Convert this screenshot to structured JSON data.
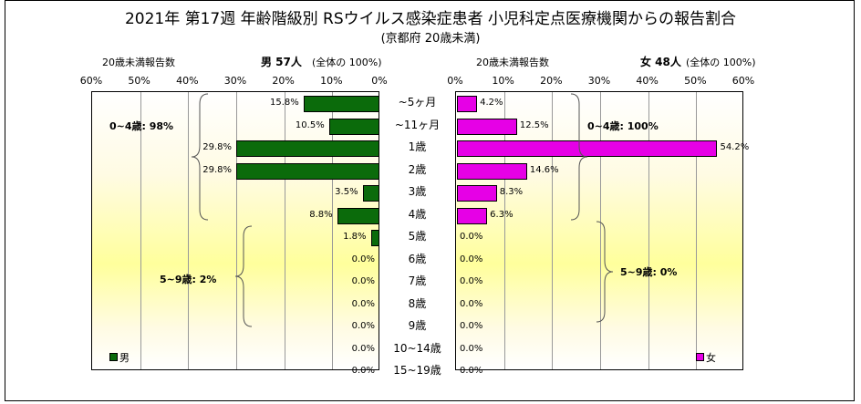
{
  "chart_data": {
    "type": "bar",
    "title": "2021年 第17週 年齢階級別 RSウイルス感染症患者 小児科定点医療機関からの報告割合",
    "subtitle": "(京都府 20歳未満)",
    "categories": [
      "~5ヶ月",
      "~11ヶ月",
      "1歳",
      "2歳",
      "3歳",
      "4歳",
      "5歳",
      "6歳",
      "7歳",
      "8歳",
      "9歳",
      "10~14歳",
      "15~19歳"
    ],
    "xlim": [
      0,
      60
    ],
    "ticks": [
      "60%",
      "50%",
      "40%",
      "30%",
      "20%",
      "10%",
      "0%"
    ],
    "ticks_right": [
      "0%",
      "10%",
      "20%",
      "30%",
      "40%",
      "50%",
      "60%"
    ],
    "grid": true,
    "male": {
      "axis_label": "20歳未満報告数",
      "total_label": "男  57人",
      "note": "(全体の  100%)",
      "legend": "男",
      "color": "#0b6b0b",
      "values": [
        15.8,
        10.5,
        29.8,
        29.8,
        3.5,
        8.8,
        1.8,
        0.0,
        0.0,
        0.0,
        0.0,
        0.0,
        0.0
      ],
      "labels": [
        "15.8%",
        "10.5%",
        "29.8%",
        "29.8%",
        "3.5%",
        "8.8%",
        "1.8%",
        "0.0%",
        "0.0%",
        "0.0%",
        "0.0%",
        "0.0%",
        "0.0%"
      ],
      "group_0_4": "0~4歳: 98%",
      "group_5_9": "5~9歳: 2%"
    },
    "female": {
      "axis_label": "20歳未満報告数",
      "total_label": "女  48人",
      "note": "(全体の  100%)",
      "legend": "女",
      "color": "#e600e6",
      "values": [
        4.2,
        12.5,
        54.2,
        14.6,
        8.3,
        6.3,
        0.0,
        0.0,
        0.0,
        0.0,
        0.0,
        0.0,
        0.0
      ],
      "labels": [
        "4.2%",
        "12.5%",
        "54.2%",
        "14.6%",
        "8.3%",
        "6.3%",
        "0.0%",
        "0.0%",
        "0.0%",
        "0.0%",
        "0.0%",
        "0.0%",
        "0.0%"
      ],
      "group_0_4": "0~4歳: 100%",
      "group_5_9": "5~9歳: 0%"
    }
  }
}
